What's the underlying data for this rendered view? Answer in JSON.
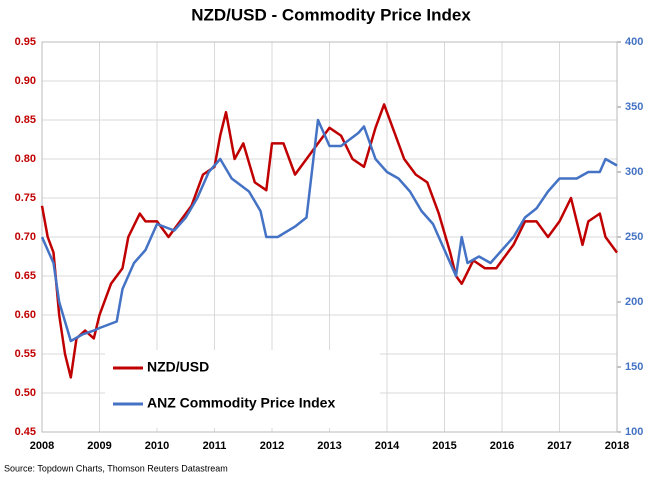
{
  "chart_data": {
    "type": "line",
    "title": "NZD/USD - Commodity Price Index",
    "source": "Source: Topdown Charts, Thomson Reuters Datastream",
    "xlim": [
      2008,
      2018
    ],
    "xticks": [
      2008,
      2009,
      2010,
      2011,
      2012,
      2013,
      2014,
      2015,
      2016,
      2017,
      2018
    ],
    "ylim": [
      0.45,
      0.95
    ],
    "yticks": [
      0.45,
      {
        "value": 0.5,
        "label": "0.50"
      },
      0.55,
      {
        "value": 0.6,
        "label": "0.60"
      },
      0.65,
      {
        "value": 0.7,
        "label": "0.70"
      },
      0.75,
      {
        "value": 0.8,
        "label": "0.80"
      },
      0.85,
      {
        "value": 0.9,
        "label": "0.90"
      },
      0.95
    ],
    "y2lim": [
      100,
      400
    ],
    "y2ticks": [
      100,
      150,
      200,
      250,
      300,
      350,
      400
    ],
    "grid": true,
    "legend": "lower left",
    "series": [
      {
        "name": "NZD/USD",
        "color": "#c00000",
        "x": [
          2008.0,
          2008.1,
          2008.2,
          2008.3,
          2008.4,
          2008.5,
          2008.6,
          2008.75,
          2008.9,
          2009.0,
          2009.2,
          2009.4,
          2009.5,
          2009.7,
          2009.8,
          2010.0,
          2010.2,
          2010.4,
          2010.6,
          2010.8,
          2011.0,
          2011.1,
          2011.2,
          2011.35,
          2011.5,
          2011.7,
          2011.9,
          2012.0,
          2012.2,
          2012.4,
          2012.6,
          2012.8,
          2013.0,
          2013.2,
          2013.4,
          2013.6,
          2013.8,
          2013.95,
          2014.1,
          2014.3,
          2014.5,
          2014.7,
          2014.9,
          2015.1,
          2015.2,
          2015.3,
          2015.5,
          2015.7,
          2015.9,
          2016.0,
          2016.2,
          2016.4,
          2016.6,
          2016.8,
          2017.0,
          2017.2,
          2017.4,
          2017.5,
          2017.7,
          2017.8,
          2018.0
        ],
        "values": [
          0.74,
          0.7,
          0.68,
          0.6,
          0.55,
          0.52,
          0.57,
          0.58,
          0.57,
          0.6,
          0.64,
          0.66,
          0.7,
          0.73,
          0.72,
          0.72,
          0.7,
          0.72,
          0.74,
          0.78,
          0.79,
          0.83,
          0.86,
          0.8,
          0.82,
          0.77,
          0.76,
          0.82,
          0.82,
          0.78,
          0.8,
          0.82,
          0.84,
          0.83,
          0.8,
          0.79,
          0.84,
          0.87,
          0.84,
          0.8,
          0.78,
          0.77,
          0.73,
          0.68,
          0.65,
          0.64,
          0.67,
          0.66,
          0.66,
          0.67,
          0.69,
          0.72,
          0.72,
          0.7,
          0.72,
          0.75,
          0.69,
          0.72,
          0.73,
          0.7,
          0.68
        ]
      },
      {
        "name": "ANZ Commodity Price Index",
        "color": "#4472c4",
        "axis": "y2",
        "x": [
          2008.0,
          2008.1,
          2008.2,
          2008.3,
          2008.4,
          2008.5,
          2008.7,
          2008.9,
          2009.0,
          2009.3,
          2009.4,
          2009.6,
          2009.8,
          2010.0,
          2010.3,
          2010.5,
          2010.7,
          2010.9,
          2011.1,
          2011.3,
          2011.6,
          2011.8,
          2011.9,
          2012.1,
          2012.4,
          2012.6,
          2012.8,
          2013.0,
          2013.2,
          2013.5,
          2013.6,
          2013.8,
          2014.0,
          2014.2,
          2014.4,
          2014.6,
          2014.8,
          2015.0,
          2015.2,
          2015.3,
          2015.4,
          2015.6,
          2015.8,
          2016.0,
          2016.2,
          2016.4,
          2016.6,
          2016.8,
          2017.0,
          2017.3,
          2017.5,
          2017.7,
          2017.8,
          2018.0
        ],
        "values": [
          250,
          240,
          230,
          200,
          185,
          170,
          175,
          178,
          180,
          185,
          210,
          230,
          240,
          260,
          255,
          265,
          280,
          300,
          310,
          295,
          285,
          270,
          250,
          250,
          258,
          265,
          340,
          320,
          320,
          330,
          335,
          310,
          300,
          295,
          285,
          270,
          260,
          240,
          220,
          250,
          230,
          235,
          230,
          240,
          250,
          265,
          272,
          285,
          295,
          295,
          300,
          300,
          310,
          305
        ]
      }
    ]
  }
}
